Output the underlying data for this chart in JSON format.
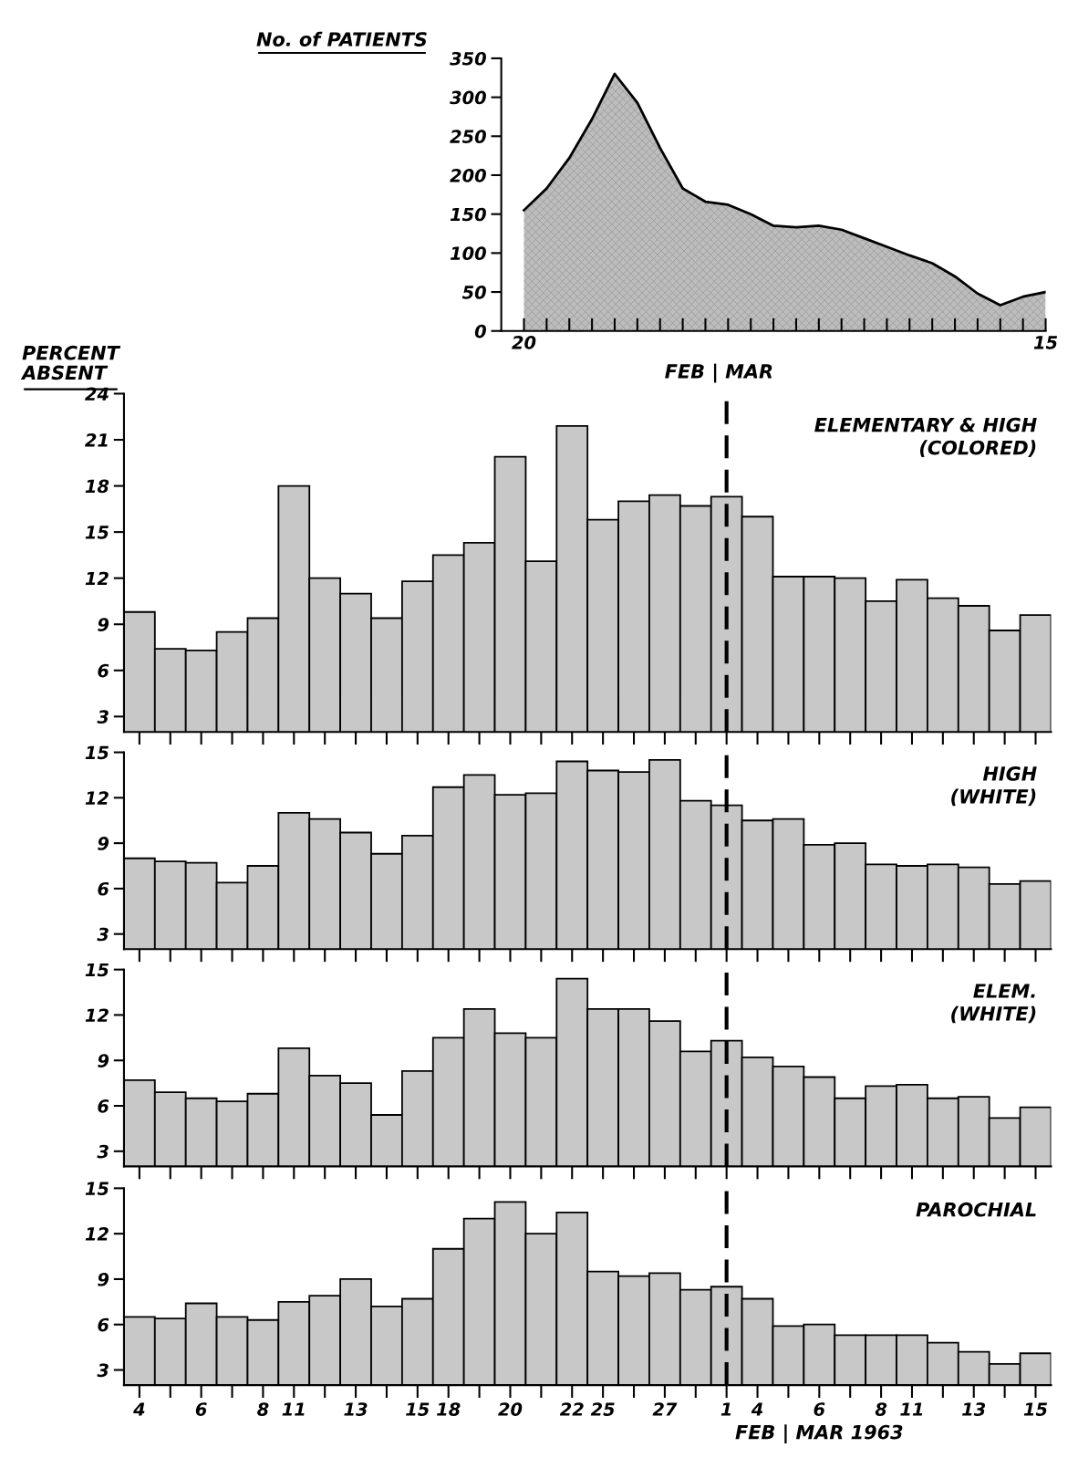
{
  "chart_data": [
    {
      "type": "area",
      "ylabel": "No. of PATIENTS",
      "xlabel": "FEB | MAR",
      "x": [
        "1963-02-20",
        "1963-02-21",
        "1963-02-22",
        "1963-02-23",
        "1963-02-24",
        "1963-02-25",
        "1963-02-26",
        "1963-02-27",
        "1963-02-28",
        "1963-03-01",
        "1963-03-02",
        "1963-03-03",
        "1963-03-04",
        "1963-03-05",
        "1963-03-06",
        "1963-03-07",
        "1963-03-08",
        "1963-03-09",
        "1963-03-10",
        "1963-03-11",
        "1963-03-12",
        "1963-03-13",
        "1963-03-14",
        "1963-03-15"
      ],
      "series": [
        {
          "color": "#bdbdbd",
          "values": [
            155,
            183,
            222,
            272,
            330,
            293,
            235,
            183,
            166,
            162,
            150,
            135,
            133,
            135,
            130,
            119,
            108,
            97,
            87,
            70,
            48,
            33,
            44,
            50
          ]
        }
      ],
      "xlim": [
        "1963-02-19",
        "1963-03-15"
      ],
      "ylim": [
        0,
        350
      ],
      "yticks": [
        0,
        50,
        100,
        150,
        200,
        250,
        300,
        350
      ],
      "xticks": [
        {
          "value": "1963-02-20",
          "label": "20"
        },
        {
          "value": "1963-02-21",
          "label": null
        },
        {
          "value": "1963-02-22",
          "label": null
        },
        {
          "value": "1963-02-23",
          "label": null
        },
        {
          "value": "1963-02-24",
          "label": null
        },
        {
          "value": "1963-02-25",
          "label": null
        },
        {
          "value": "1963-02-26",
          "label": null
        },
        {
          "value": "1963-02-27",
          "label": null
        },
        {
          "value": "1963-02-28",
          "label": null
        },
        {
          "value": "1963-03-01",
          "label": null
        },
        {
          "value": "1963-03-02",
          "label": null
        },
        {
          "value": "1963-03-03",
          "label": null
        },
        {
          "value": "1963-03-04",
          "label": null
        },
        {
          "value": "1963-03-05",
          "label": null
        },
        {
          "value": "1963-03-06",
          "label": null
        },
        {
          "value": "1963-03-07",
          "label": null
        },
        {
          "value": "1963-03-08",
          "label": null
        },
        {
          "value": "1963-03-09",
          "label": null
        },
        {
          "value": "1963-03-10",
          "label": null
        },
        {
          "value": "1963-03-11",
          "label": null
        },
        {
          "value": "1963-03-12",
          "label": null
        },
        {
          "value": "1963-03-13",
          "label": null
        },
        {
          "value": "1963-03-14",
          "label": null
        },
        {
          "value": "1963-03-15",
          "label": "15"
        }
      ]
    },
    {
      "type": "bar",
      "ylabel": "PERCENT\nABSENT",
      "annotations": [
        "ELEMENTARY & HIGH\n(COLORED)"
      ],
      "categories": [
        "4",
        null,
        "6",
        null,
        "8",
        "11",
        null,
        "13",
        null,
        "15",
        "18",
        null,
        "20",
        null,
        "22",
        "25",
        null,
        "27",
        null,
        "1",
        "4",
        null,
        "6",
        null,
        "8",
        "11",
        null,
        "13",
        null,
        "15"
      ],
      "series": [
        {
          "color": "#c8c8c8",
          "values": [
            9.8,
            7.4,
            7.3,
            8.5,
            9.4,
            18.0,
            12.0,
            11.0,
            9.4,
            11.8,
            13.5,
            14.3,
            19.9,
            13.1,
            21.9,
            15.8,
            17.0,
            17.4,
            16.7,
            17.3,
            16.0,
            12.1,
            12.1,
            12.0,
            10.5,
            11.9,
            10.7,
            10.2,
            8.6,
            9.6
          ]
        }
      ],
      "ylim": [
        2,
        24
      ],
      "yticks": [
        3,
        6,
        9,
        12,
        15,
        18,
        21,
        24
      ],
      "tick_labels": "y",
      "ref_lines": [
        {
          "axis": "x",
          "value": "1",
          "line_style": "dashed"
        }
      ]
    },
    {
      "type": "bar",
      "annotations": [
        "HIGH\n(WHITE)"
      ],
      "categories": [
        "4",
        null,
        "6",
        null,
        "8",
        "11",
        null,
        "13",
        null,
        "15",
        "18",
        null,
        "20",
        null,
        "22",
        "25",
        null,
        "27",
        null,
        "1",
        "4",
        null,
        "6",
        null,
        "8",
        "11",
        null,
        "13",
        null,
        "15"
      ],
      "series": [
        {
          "color": "#c8c8c8",
          "values": [
            8.0,
            7.8,
            7.7,
            6.4,
            7.5,
            11.0,
            10.6,
            9.7,
            8.3,
            9.5,
            12.7,
            13.5,
            12.2,
            12.3,
            14.4,
            13.8,
            13.7,
            14.5,
            11.8,
            11.5,
            10.5,
            10.6,
            8.9,
            9.0,
            7.6,
            7.5,
            7.6,
            7.4,
            6.3,
            6.5
          ]
        }
      ],
      "ylim": [
        2,
        15
      ],
      "yticks": [
        3,
        6,
        9,
        12,
        15
      ],
      "tick_labels": "y",
      "ref_lines": [
        {
          "axis": "x",
          "value": "1",
          "line_style": "dashed"
        }
      ]
    },
    {
      "type": "bar",
      "annotations": [
        "ELEM.\n(WHITE)"
      ],
      "categories": [
        "4",
        null,
        "6",
        null,
        "8",
        "11",
        null,
        "13",
        null,
        "15",
        "18",
        null,
        "20",
        null,
        "22",
        "25",
        null,
        "27",
        null,
        "1",
        "4",
        null,
        "6",
        null,
        "8",
        "11",
        null,
        "13",
        null,
        "15"
      ],
      "series": [
        {
          "color": "#c8c8c8",
          "values": [
            7.7,
            6.9,
            6.5,
            6.3,
            6.8,
            9.8,
            8.0,
            7.5,
            5.4,
            8.3,
            10.5,
            12.4,
            10.8,
            10.5,
            14.4,
            12.4,
            12.4,
            11.6,
            9.6,
            10.3,
            9.2,
            8.6,
            7.9,
            6.5,
            7.3,
            7.4,
            6.5,
            6.6,
            5.2,
            5.9
          ]
        }
      ],
      "ylim": [
        2,
        15
      ],
      "yticks": [
        3,
        6,
        9,
        12,
        15
      ],
      "tick_labels": "y",
      "ref_lines": [
        {
          "axis": "x",
          "value": "1",
          "line_style": "dashed"
        }
      ]
    },
    {
      "type": "bar",
      "annotations": [
        "PAROCHIAL"
      ],
      "xlabel": "FEB | MAR 1963",
      "categories": [
        "4",
        null,
        "6",
        null,
        "8",
        "11",
        null,
        "13",
        null,
        "15",
        "18",
        null,
        "20",
        null,
        "22",
        "25",
        null,
        "27",
        null,
        "1",
        "4",
        null,
        "6",
        null,
        "8",
        "11",
        null,
        "13",
        null,
        "15"
      ],
      "series": [
        {
          "color": "#c8c8c8",
          "values": [
            6.5,
            6.4,
            7.4,
            6.5,
            6.3,
            7.5,
            7.9,
            9.0,
            7.2,
            7.7,
            11.0,
            13.0,
            14.1,
            12.0,
            13.4,
            9.5,
            9.2,
            9.4,
            8.3,
            8.5,
            7.7,
            5.9,
            6.0,
            5.3,
            5.3,
            5.3,
            4.8,
            4.2,
            3.4,
            4.1
          ]
        }
      ],
      "ylim": [
        2,
        15
      ],
      "yticks": [
        3,
        6,
        9,
        12,
        15
      ],
      "ref_lines": [
        {
          "axis": "x",
          "value": "1",
          "line_style": "dashed"
        }
      ]
    }
  ]
}
